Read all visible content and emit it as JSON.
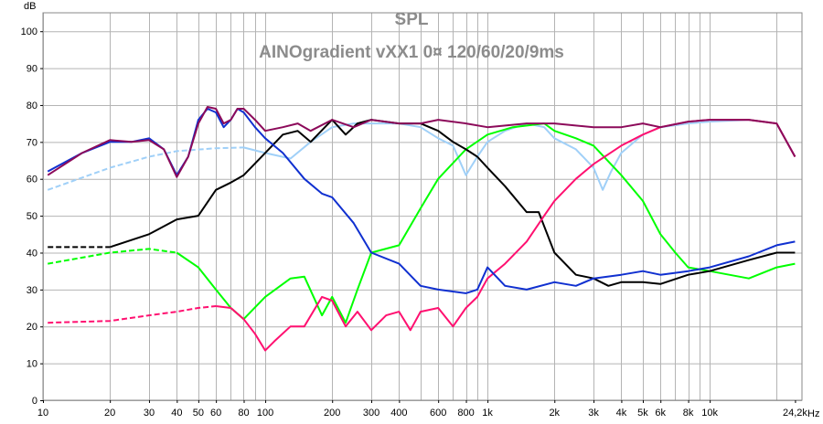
{
  "chart_data": {
    "type": "line",
    "title": "SPL",
    "subtitle": "AINOgradient vXX1 0¤ 120/60/20/9ms",
    "ylabel": "dB",
    "xlabel": "Hz",
    "xscale": "log",
    "xlim": [
      10,
      26000
    ],
    "ylim": [
      0,
      105
    ],
    "grid": true,
    "y_ticks": [
      0,
      10,
      20,
      30,
      40,
      50,
      60,
      70,
      80,
      90,
      100
    ],
    "x_ticks": [
      {
        "v": 10,
        "t": "10"
      },
      {
        "v": 20,
        "t": "20"
      },
      {
        "v": 30,
        "t": "30"
      },
      {
        "v": 40,
        "t": "40"
      },
      {
        "v": 50,
        "t": "50"
      },
      {
        "v": 60,
        "t": "60"
      },
      {
        "v": 80,
        "t": "80"
      },
      {
        "v": 100,
        "t": "100"
      },
      {
        "v": 200,
        "t": "200"
      },
      {
        "v": 300,
        "t": "300"
      },
      {
        "v": 400,
        "t": "400"
      },
      {
        "v": 600,
        "t": "600"
      },
      {
        "v": 800,
        "t": "800"
      },
      {
        "v": 1000,
        "t": "1k"
      },
      {
        "v": 2000,
        "t": "2k"
      },
      {
        "v": 3000,
        "t": "3k"
      },
      {
        "v": 4000,
        "t": "4k"
      },
      {
        "v": 5000,
        "t": "5k"
      },
      {
        "v": 6000,
        "t": "6k"
      },
      {
        "v": 8000,
        "t": "8k"
      },
      {
        "v": 10000,
        "t": "10k"
      },
      {
        "v": 24200,
        "t": "24,2k"
      }
    ],
    "series": [
      {
        "color": "#a0d0f8",
        "dashed_below": 70,
        "points": [
          [
            10.5,
            57
          ],
          [
            20,
            63
          ],
          [
            30,
            66
          ],
          [
            40,
            67.5
          ],
          [
            60,
            68.3
          ],
          [
            80,
            68.5
          ],
          [
            100,
            67
          ],
          [
            130,
            65.5
          ],
          [
            160,
            70
          ],
          [
            200,
            74
          ],
          [
            250,
            75
          ],
          [
            300,
            75
          ],
          [
            400,
            75
          ],
          [
            500,
            74
          ],
          [
            600,
            71
          ],
          [
            700,
            69
          ],
          [
            800,
            61
          ],
          [
            900,
            66
          ],
          [
            1000,
            70
          ],
          [
            1200,
            73
          ],
          [
            1500,
            75
          ],
          [
            1800,
            74
          ],
          [
            2000,
            71
          ],
          [
            2500,
            68
          ],
          [
            3000,
            63
          ],
          [
            3300,
            57
          ],
          [
            3600,
            62
          ],
          [
            4000,
            67
          ],
          [
            5000,
            72
          ],
          [
            6000,
            74
          ],
          [
            8000,
            75
          ],
          [
            10000,
            75.5
          ],
          [
            15000,
            76
          ],
          [
            20000,
            75
          ],
          [
            24200,
            66
          ]
        ]
      },
      {
        "color": "#00ff00",
        "dashed_below": 30,
        "points": [
          [
            10.5,
            37
          ],
          [
            20,
            40
          ],
          [
            30,
            41
          ],
          [
            40,
            40
          ],
          [
            50,
            36
          ],
          [
            60,
            30
          ],
          [
            70,
            25
          ],
          [
            80,
            22
          ],
          [
            100,
            28
          ],
          [
            130,
            33
          ],
          [
            150,
            33.5
          ],
          [
            180,
            23
          ],
          [
            200,
            28
          ],
          [
            230,
            21
          ],
          [
            260,
            30
          ],
          [
            300,
            40
          ],
          [
            400,
            42
          ],
          [
            500,
            52
          ],
          [
            600,
            60
          ],
          [
            800,
            68
          ],
          [
            1000,
            72
          ],
          [
            1300,
            74
          ],
          [
            1800,
            75
          ],
          [
            2000,
            73
          ],
          [
            2500,
            71
          ],
          [
            3000,
            69
          ],
          [
            4000,
            61
          ],
          [
            5000,
            54
          ],
          [
            6000,
            45
          ],
          [
            7000,
            40
          ],
          [
            8000,
            36
          ],
          [
            10000,
            35
          ],
          [
            15000,
            33
          ],
          [
            20000,
            36
          ],
          [
            24200,
            37
          ]
        ]
      },
      {
        "color": "#000000",
        "dashed_below": 12,
        "points": [
          [
            10.5,
            41.5
          ],
          [
            20,
            41.5
          ],
          [
            30,
            45
          ],
          [
            40,
            49
          ],
          [
            50,
            50
          ],
          [
            60,
            57
          ],
          [
            70,
            59
          ],
          [
            80,
            61
          ],
          [
            100,
            67
          ],
          [
            120,
            72
          ],
          [
            140,
            73
          ],
          [
            160,
            70
          ],
          [
            200,
            76
          ],
          [
            230,
            72
          ],
          [
            260,
            75
          ],
          [
            300,
            76
          ],
          [
            400,
            75
          ],
          [
            500,
            75
          ],
          [
            600,
            73
          ],
          [
            700,
            70
          ],
          [
            800,
            68
          ],
          [
            900,
            66
          ],
          [
            1000,
            63
          ],
          [
            1200,
            58
          ],
          [
            1500,
            51
          ],
          [
            1700,
            51
          ],
          [
            2000,
            40
          ],
          [
            2500,
            34
          ],
          [
            3000,
            33
          ],
          [
            3500,
            31
          ],
          [
            4000,
            32
          ],
          [
            5000,
            32
          ],
          [
            6000,
            31.5
          ],
          [
            8000,
            34
          ],
          [
            10000,
            35
          ],
          [
            15000,
            38
          ],
          [
            20000,
            40
          ],
          [
            24200,
            40
          ]
        ]
      },
      {
        "color": "#ff1070",
        "dashed_below": 50,
        "points": [
          [
            10.5,
            21
          ],
          [
            20,
            21.5
          ],
          [
            30,
            23
          ],
          [
            40,
            24
          ],
          [
            50,
            25
          ],
          [
            60,
            25.5
          ],
          [
            70,
            25
          ],
          [
            80,
            22
          ],
          [
            90,
            18
          ],
          [
            100,
            13.5
          ],
          [
            110,
            16
          ],
          [
            130,
            20
          ],
          [
            150,
            20
          ],
          [
            180,
            28
          ],
          [
            200,
            27
          ],
          [
            230,
            20
          ],
          [
            260,
            24
          ],
          [
            300,
            19
          ],
          [
            350,
            23
          ],
          [
            400,
            24
          ],
          [
            450,
            19
          ],
          [
            500,
            24
          ],
          [
            600,
            25
          ],
          [
            700,
            20
          ],
          [
            800,
            25
          ],
          [
            900,
            28
          ],
          [
            1000,
            33
          ],
          [
            1200,
            37
          ],
          [
            1500,
            43
          ],
          [
            1800,
            50
          ],
          [
            2000,
            54
          ],
          [
            2500,
            60
          ],
          [
            3000,
            64
          ],
          [
            4000,
            69
          ],
          [
            5000,
            72
          ],
          [
            6000,
            74
          ],
          [
            8000,
            75.5
          ],
          [
            10000,
            76
          ],
          [
            15000,
            76
          ],
          [
            20000,
            75
          ],
          [
            24200,
            66
          ]
        ]
      },
      {
        "color": "#1030d0",
        "dashed_below": 0,
        "points": [
          [
            10.5,
            62
          ],
          [
            15,
            67
          ],
          [
            20,
            70
          ],
          [
            25,
            70
          ],
          [
            30,
            71
          ],
          [
            35,
            68
          ],
          [
            40,
            61
          ],
          [
            45,
            66
          ],
          [
            50,
            76
          ],
          [
            55,
            79
          ],
          [
            60,
            78
          ],
          [
            65,
            74
          ],
          [
            70,
            76
          ],
          [
            75,
            79
          ],
          [
            80,
            78
          ],
          [
            90,
            74
          ],
          [
            100,
            71
          ],
          [
            120,
            67
          ],
          [
            150,
            60
          ],
          [
            180,
            56
          ],
          [
            200,
            55
          ],
          [
            250,
            48
          ],
          [
            300,
            40
          ],
          [
            400,
            37
          ],
          [
            500,
            31
          ],
          [
            600,
            30
          ],
          [
            800,
            29
          ],
          [
            900,
            30
          ],
          [
            1000,
            36
          ],
          [
            1200,
            31
          ],
          [
            1500,
            30
          ],
          [
            2000,
            32
          ],
          [
            2500,
            31
          ],
          [
            3000,
            33
          ],
          [
            4000,
            34
          ],
          [
            5000,
            35
          ],
          [
            6000,
            34
          ],
          [
            8000,
            35
          ],
          [
            10000,
            36
          ],
          [
            15000,
            39
          ],
          [
            20000,
            42
          ],
          [
            24200,
            43
          ]
        ]
      },
      {
        "color": "#8c0a5a",
        "dashed_below": 0,
        "points": [
          [
            10.5,
            61
          ],
          [
            15,
            67
          ],
          [
            20,
            70.5
          ],
          [
            25,
            70
          ],
          [
            30,
            70.5
          ],
          [
            35,
            68
          ],
          [
            40,
            60.5
          ],
          [
            45,
            66
          ],
          [
            50,
            75
          ],
          [
            55,
            79.5
          ],
          [
            60,
            79
          ],
          [
            65,
            75
          ],
          [
            70,
            76
          ],
          [
            75,
            79
          ],
          [
            80,
            79
          ],
          [
            90,
            76
          ],
          [
            100,
            73
          ],
          [
            120,
            74
          ],
          [
            140,
            75
          ],
          [
            160,
            73
          ],
          [
            200,
            76
          ],
          [
            250,
            74
          ],
          [
            300,
            76
          ],
          [
            400,
            75
          ],
          [
            500,
            75
          ],
          [
            600,
            76
          ],
          [
            800,
            75
          ],
          [
            1000,
            74
          ],
          [
            1500,
            75
          ],
          [
            2000,
            75
          ],
          [
            3000,
            74
          ],
          [
            4000,
            74
          ],
          [
            5000,
            75
          ],
          [
            6000,
            74
          ],
          [
            8000,
            75.5
          ],
          [
            10000,
            76
          ],
          [
            15000,
            76
          ],
          [
            20000,
            75
          ],
          [
            24200,
            66
          ]
        ]
      }
    ]
  }
}
